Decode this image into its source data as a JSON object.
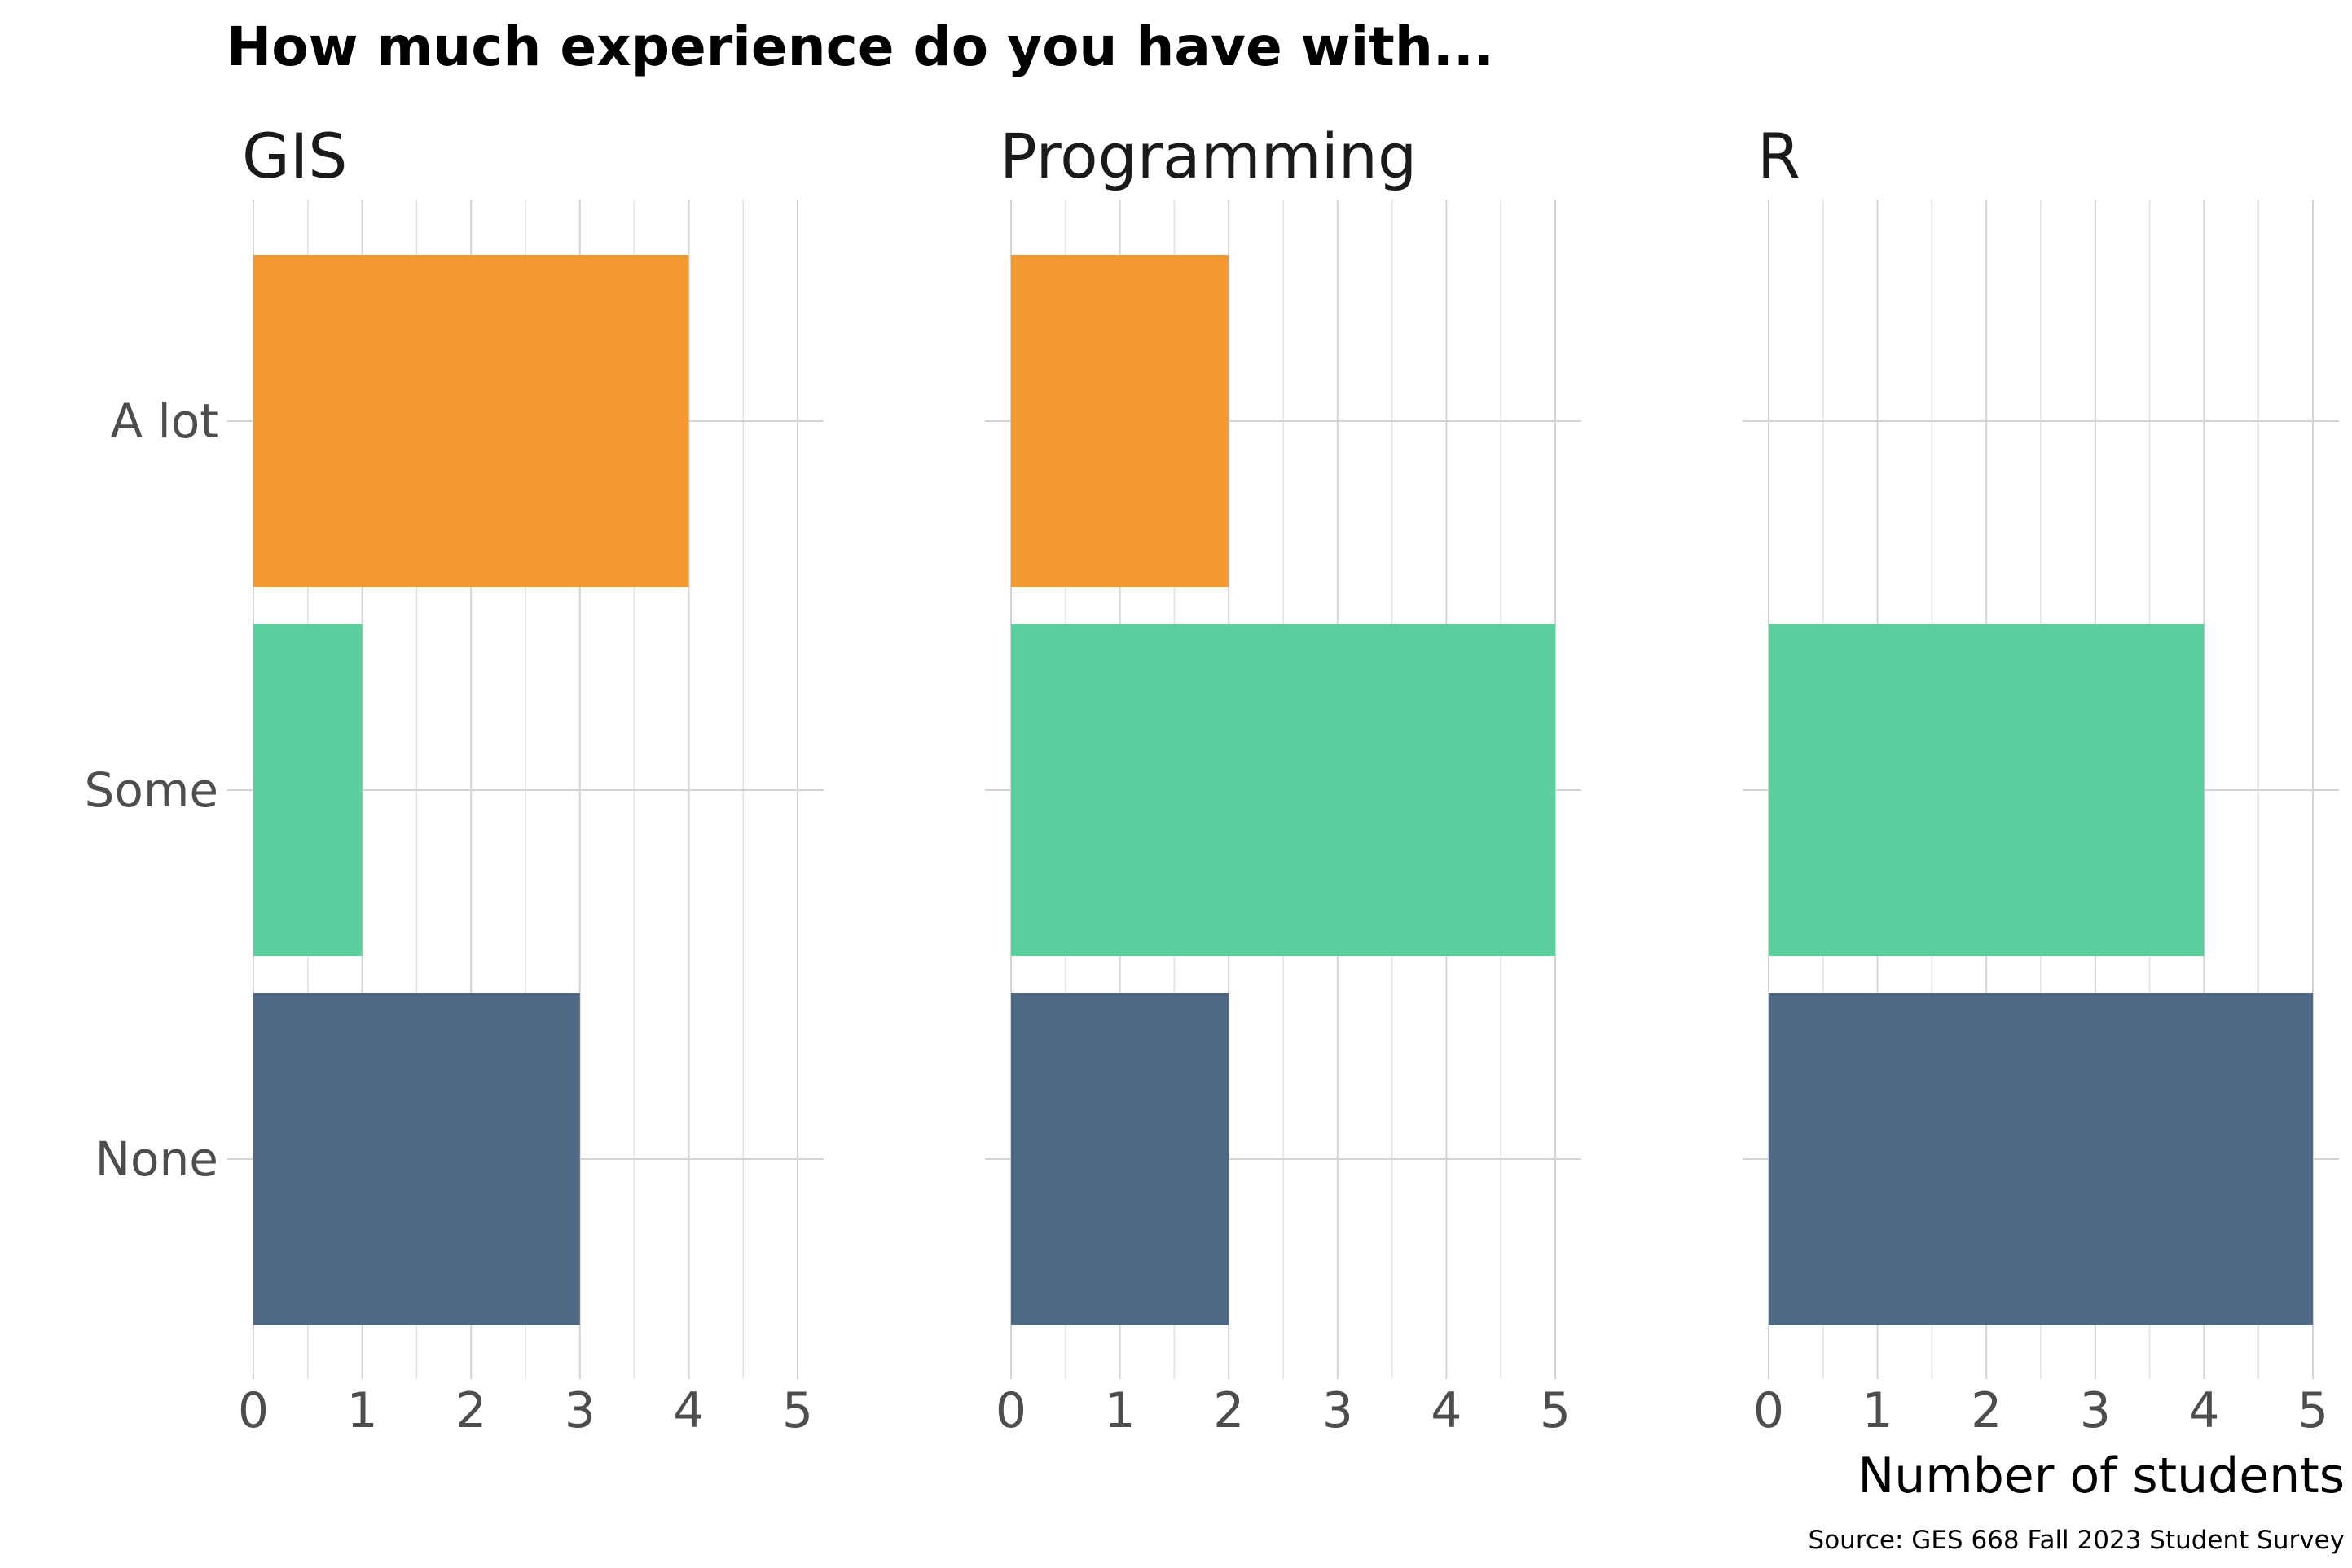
{
  "chart_data": {
    "type": "bar",
    "orientation": "horizontal",
    "title": "How much experience do you have with...",
    "xlabel": "Number of students",
    "caption": "Source: GES 668 Fall 2023 Student Survey",
    "categories": [
      "A lot",
      "Some",
      "None"
    ],
    "x_ticks": [
      "0",
      "1",
      "2",
      "3",
      "4",
      "5"
    ],
    "xlim": [
      0,
      5
    ],
    "grid": true,
    "colors": {
      "A lot": "#f39a33",
      "Some": "#5ad09e",
      "None": "#4f6885"
    },
    "facets": [
      {
        "name": "GIS",
        "values": [
          4,
          1,
          3
        ]
      },
      {
        "name": "Programming",
        "values": [
          2,
          5,
          2
        ]
      },
      {
        "name": "R",
        "values": [
          0,
          4,
          5
        ]
      }
    ]
  }
}
